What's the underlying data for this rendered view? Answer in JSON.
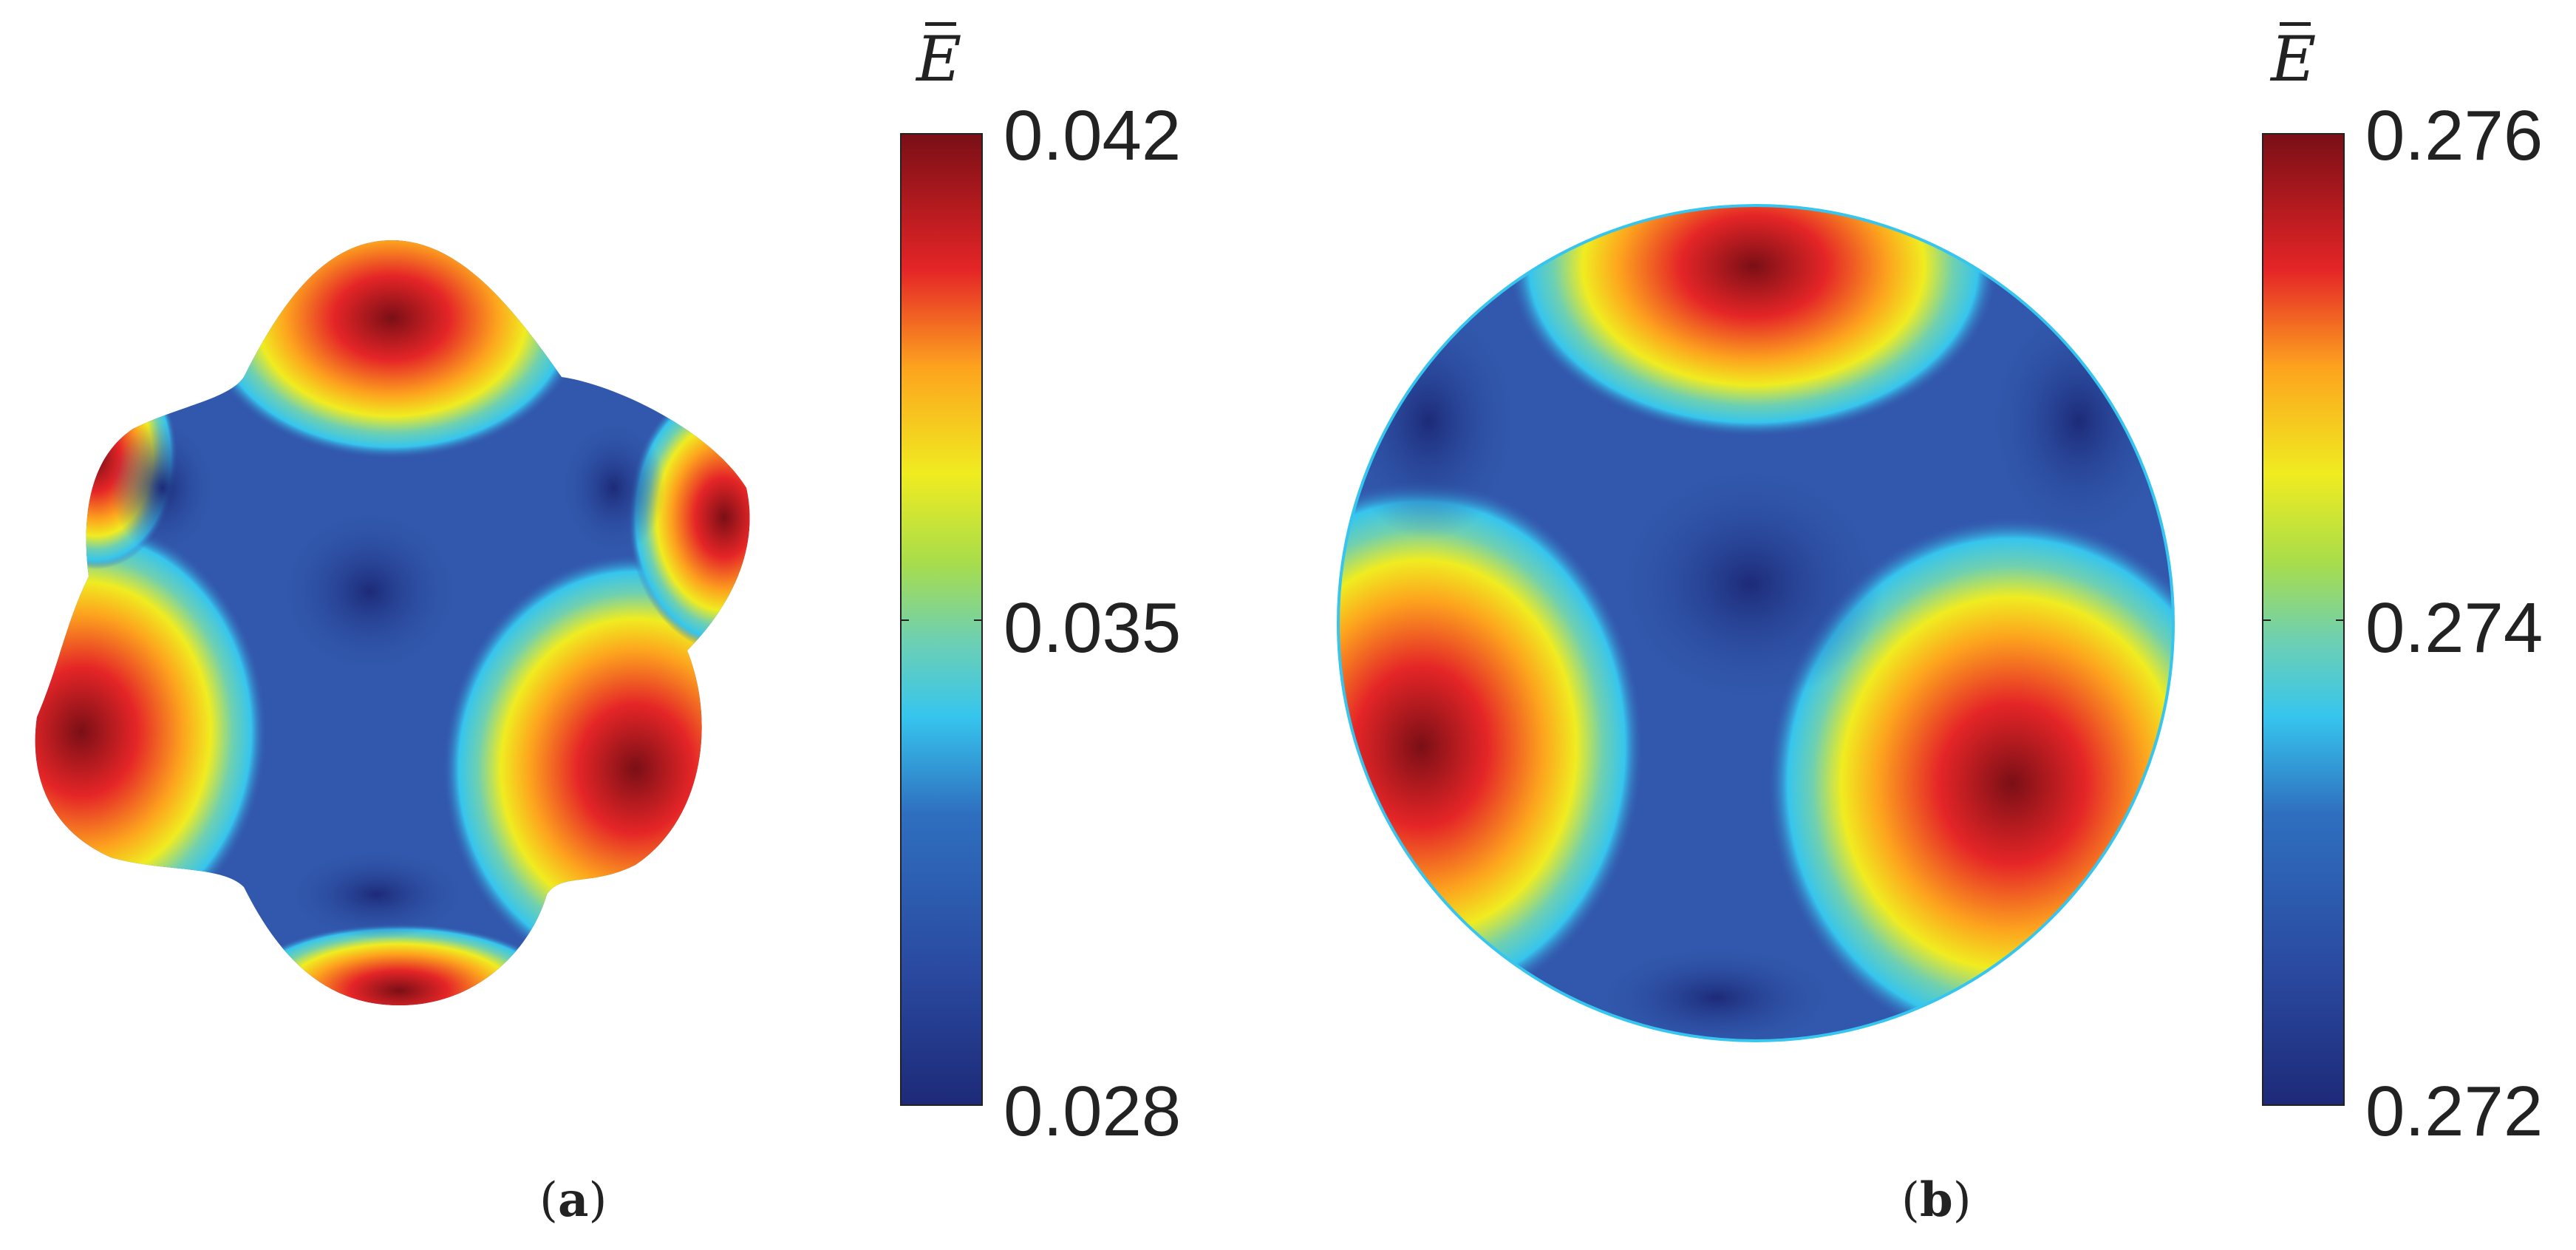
{
  "panels": [
    {
      "caption_open": "(",
      "caption_letter": "a",
      "caption_close": ")",
      "colorbar": {
        "symbol": "E",
        "ticks": [
          "0.042",
          "0.035",
          "0.028"
        ]
      }
    },
    {
      "caption_open": "(",
      "caption_letter": "b",
      "caption_close": ")",
      "colorbar": {
        "symbol": "E",
        "ticks": [
          "0.276",
          "0.274",
          "0.272"
        ]
      }
    }
  ],
  "colormap": "jet",
  "colors": {
    "low": "#1d2a78",
    "mid_low": "#36c5ee",
    "mid": "#f0ec20",
    "high": "#e52527",
    "max": "#7a0f16"
  }
}
